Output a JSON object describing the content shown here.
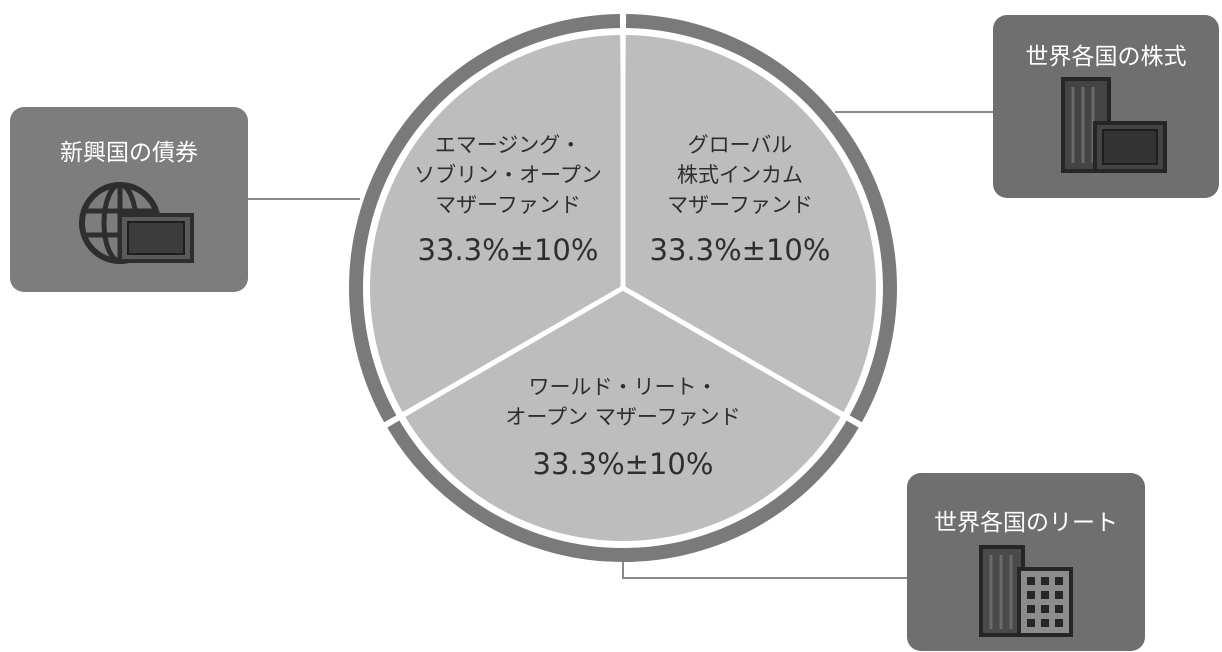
{
  "chart_data": {
    "type": "pie",
    "slices": [
      {
        "name_lines": [
          "エマージング・",
          "ソブリン・オープン",
          "マザーファンド"
        ],
        "value": 33.3,
        "label": "33.3%±10%",
        "color": "#bdbdbd"
      },
      {
        "name_lines": [
          "グローバル",
          "株式インカム",
          "マザーファンド"
        ],
        "value": 33.3,
        "label": "33.3%±10%",
        "color": "#bdbdbd"
      },
      {
        "name_lines": [
          "ワールド・リート・",
          "オープン マザーファンド"
        ],
        "value": 33.3,
        "label": "33.3%±10%",
        "color": "#bdbdbd"
      }
    ],
    "ring_color": "#7a7a7a"
  },
  "assets": {
    "bonds": {
      "label": "新興国の債券",
      "icon": "globe-icon"
    },
    "stocks": {
      "label": "世界各国の株式",
      "icon": "stock-certificate-icon"
    },
    "reits": {
      "label": "世界各国のリート",
      "icon": "buildings-icon"
    }
  }
}
